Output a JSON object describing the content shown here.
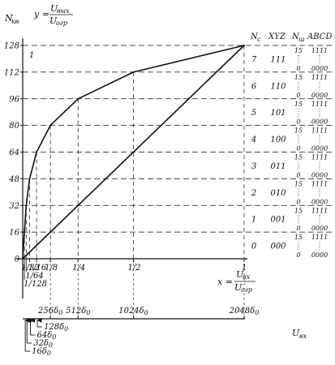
{
  "chart_data": {
    "type": "line",
    "ylabel": "N",
    "ylabel_sub": "кв",
    "ratio_y": {
      "var": "y =",
      "num": "U",
      "num_sub": "вых",
      "den": "U",
      "den_sub": "огр"
    },
    "ratio_x": {
      "var": "x =",
      "num": "U",
      "num_sub": "вх",
      "den": "U",
      "den_sub": "огр"
    },
    "y_ticks": [
      "0",
      "16",
      "32",
      "48",
      "64",
      "80",
      "96",
      "112",
      "128"
    ],
    "y_tick_values": [
      0,
      16,
      32,
      48,
      64,
      80,
      96,
      112,
      128
    ],
    "ylim": [
      0,
      128
    ],
    "xlim": [
      0,
      1
    ],
    "x_ticks_top": [
      {
        "label": "1/32",
        "x": 0.03125
      },
      {
        "label": "1/16",
        "x": 0.0625
      },
      {
        "label": "1/8",
        "x": 0.125
      },
      {
        "label": "1/4",
        "x": 0.25
      },
      {
        "label": "1/2",
        "x": 0.5
      },
      {
        "label": "1",
        "x": 1
      }
    ],
    "x_ticks_low": [
      {
        "label": "1/64",
        "x": 0.015625
      },
      {
        "label": "1/128",
        "x": 0.0078125
      }
    ],
    "series": [
      {
        "name": "",
        "x": [
          0,
          0.0078125,
          0.015625,
          0.03125,
          0.0625,
          0.125,
          0.25,
          0.5,
          1
        ],
        "y": [
          0,
          16,
          32,
          48,
          64,
          80,
          96,
          112,
          128
        ]
      },
      {
        "name": "",
        "x": [
          0,
          1
        ],
        "y": [
          0,
          128
        ]
      }
    ],
    "segment_labels": [
      "1",
      "0",
      "1",
      "2",
      "3",
      "4",
      "5",
      "6",
      "7"
    ],
    "table": {
      "headers": [
        "N",
        "XYZ",
        "N",
        "ABCD"
      ],
      "header_subs": [
        "c",
        "",
        "ш",
        ""
      ],
      "rows": [
        {
          "nc": "7",
          "xyz": "111",
          "nsh_top": "15",
          "nsh_bot": "0",
          "abcd_top": "1111",
          "abcd_bot": "0000"
        },
        {
          "nc": "6",
          "xyz": "110",
          "nsh_top": "15",
          "nsh_bot": "0",
          "abcd_top": "1111",
          "abcd_bot": "0000"
        },
        {
          "nc": "5",
          "xyz": "101",
          "nsh_top": "15",
          "nsh_bot": "0",
          "abcd_top": "1111",
          "abcd_bot": "0000"
        },
        {
          "nc": "4",
          "xyz": "100",
          "nsh_top": "15",
          "nsh_bot": "0",
          "abcd_top": "1111",
          "abcd_bot": "0000"
        },
        {
          "nc": "3",
          "xyz": "011",
          "nsh_top": "15",
          "nsh_bot": "0",
          "abcd_top": "1111",
          "abcd_bot": "0000"
        },
        {
          "nc": "2",
          "xyz": "010",
          "nsh_top": "15",
          "nsh_bot": "0",
          "abcd_top": "1111",
          "abcd_bot": "0000"
        },
        {
          "nc": "1",
          "xyz": "001",
          "nsh_top": "15",
          "nsh_bot": "0",
          "abcd_top": "1111",
          "abcd_bot": "0000"
        },
        {
          "nc": "0",
          "xyz": "000",
          "nsh_top": "15",
          "nsh_bot": "0",
          "abcd_top": "1111",
          "abcd_bot": "0000"
        }
      ]
    },
    "bottom_axis": {
      "label": "U",
      "label_sub": "вх",
      "upper_ticks": [
        "256δ",
        "512δ",
        "1024δ",
        "2048δ"
      ],
      "upper_ticks_sub": "0",
      "upper_tick_values": [
        256,
        512,
        1024,
        2048
      ],
      "leader_labels": [
        "128δ",
        "64δ",
        "32δ",
        "16δ"
      ],
      "leader_values": [
        128,
        64,
        32,
        16
      ],
      "leader_sub": "0"
    }
  }
}
